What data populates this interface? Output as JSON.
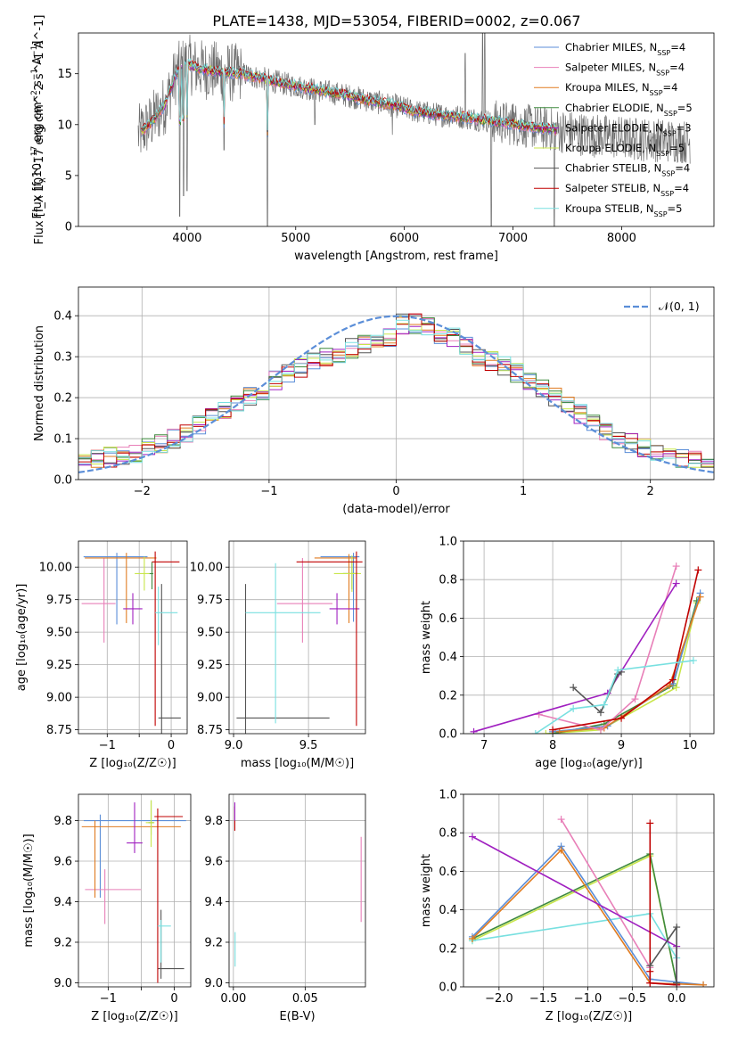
{
  "figure_title": "PLATE=1438, MJD=53054, FIBERID=0002, z=0.067",
  "colors": {
    "Chabrier MILES": "#5b8ed8",
    "Salpeter MILES": "#e87fb8",
    "Kroupa MILES": "#e07b20",
    "Chabrier ELODIE": "#3f8a3f",
    "Salpeter ELODIE": "#a020c0",
    "Kroupa ELODIE": "#c8e64a",
    "Chabrier STELIB": "#555555",
    "Salpeter STELIB": "#c00000",
    "Kroupa STELIB": "#78e0e0",
    "data": "#6e6e6e",
    "normal": "#5b8ed8"
  },
  "chart_data": [
    {
      "id": "spectrum",
      "type": "line",
      "title": "PLATE=1438, MJD=53054, FIBERID=0002, z=0.067",
      "xlabel": "wavelength [Angstrom, rest frame]",
      "ylabel": "Flux [f_λ 10^-17 erg cm^-2 s^-1 A^-1]",
      "xlim": [
        3000,
        8850
      ],
      "ylim": [
        0,
        19
      ],
      "xticks": [
        4000,
        5000,
        6000,
        7000,
        8000
      ],
      "yticks": [
        0,
        5,
        10,
        15
      ],
      "grid": false,
      "legend_position": "top-right",
      "legend": [
        {
          "label": "Chabrier MILES, N",
          "sub": "SSP",
          "tail": "=4"
        },
        {
          "label": "Salpeter MILES, N",
          "sub": "SSP",
          "tail": "=4"
        },
        {
          "label": "Kroupa MILES, N",
          "sub": "SSP",
          "tail": "=4"
        },
        {
          "label": "Chabrier ELODIE, N",
          "sub": "SSP",
          "tail": "=5"
        },
        {
          "label": "Salpeter ELODIE, N",
          "sub": "SSP",
          "tail": "=3"
        },
        {
          "label": "Kroupa ELODIE, N",
          "sub": "SSP",
          "tail": "=5"
        },
        {
          "label": "Chabrier STELIB, N",
          "sub": "SSP",
          "tail": "=4"
        },
        {
          "label": "Salpeter STELIB, N",
          "sub": "SSP",
          "tail": "=4"
        },
        {
          "label": "Kroupa STELIB, N",
          "sub": "SSP",
          "tail": "=5"
        }
      ],
      "data_trend": {
        "x": [
          3550,
          3650,
          3800,
          3900,
          4000,
          4100,
          4300,
          4500,
          4700,
          4900,
          5100,
          5300,
          5500,
          5700,
          5900,
          6100,
          6300,
          6500,
          6700,
          6900,
          7100,
          7300,
          7500,
          7700,
          7900,
          8100,
          8300,
          8500,
          8630
        ],
        "y": [
          9.0,
          10.0,
          12.0,
          15.0,
          16.0,
          15.5,
          15.2,
          15.0,
          14.5,
          14.0,
          13.6,
          13.2,
          12.8,
          12.3,
          11.9,
          11.3,
          11.0,
          10.8,
          10.5,
          10.2,
          9.9,
          9.6,
          9.3,
          9.0,
          8.8,
          8.6,
          8.5,
          8.4,
          8.3
        ]
      },
      "absorption_dips": [
        {
          "x": 3933,
          "y": 1.0
        },
        {
          "x": 3969,
          "y": 3.0
        },
        {
          "x": 4000,
          "y": 3.5
        },
        {
          "x": 4340,
          "y": 7.5
        },
        {
          "x": 4740,
          "y": 0.0
        },
        {
          "x": 5175,
          "y": 10.0
        },
        {
          "x": 5890,
          "y": 9.0
        },
        {
          "x": 6800,
          "y": 0.0
        },
        {
          "x": 7380,
          "y": 0.0
        }
      ],
      "emission_spikes": [
        {
          "x": 6560,
          "y": 17.0
        },
        {
          "x": 6720,
          "y": 19.0
        },
        {
          "x": 6740,
          "y": 19.0
        },
        {
          "x": 7000,
          "y": 12.0
        }
      ]
    },
    {
      "id": "residuals",
      "type": "histogram",
      "xlabel": "(data-model)/error",
      "ylabel": "Normed distribution",
      "xlim": [
        -2.5,
        2.5
      ],
      "ylim": [
        0,
        0.47
      ],
      "xticks": [
        -2,
        -1,
        0,
        1,
        2
      ],
      "yticks": [
        0.0,
        0.1,
        0.2,
        0.3,
        0.4
      ],
      "grid": true,
      "legend_position": "top-right",
      "normal_label": "𝒩(0, 1)",
      "bin_width": 0.1,
      "bin_start": -2.5,
      "base_profile": [
        0.045,
        0.05,
        0.055,
        0.06,
        0.065,
        0.08,
        0.09,
        0.1,
        0.115,
        0.13,
        0.15,
        0.165,
        0.185,
        0.2,
        0.22,
        0.24,
        0.26,
        0.27,
        0.29,
        0.3,
        0.31,
        0.32,
        0.33,
        0.34,
        0.35,
        0.38,
        0.38,
        0.37,
        0.35,
        0.345,
        0.33,
        0.3,
        0.29,
        0.28,
        0.26,
        0.245,
        0.22,
        0.2,
        0.18,
        0.16,
        0.14,
        0.12,
        0.1,
        0.09,
        0.08,
        0.07,
        0.06,
        0.05,
        0.045,
        0.04
      ]
    },
    {
      "id": "age_vs_Z",
      "type": "errorbar",
      "xlabel": "Z [log₁₀(Z/Z☉)]",
      "ylabel": "age  [log₁₀(age/yr)]",
      "xlim": [
        -1.45,
        0.25
      ],
      "ylim": [
        8.72,
        10.2
      ],
      "xticks": [
        -1,
        -0.5,
        0
      ],
      "xticklabels": [
        "−1",
        "",
        "0"
      ],
      "yticks": [
        8.75,
        9.0,
        9.25,
        9.5,
        9.75,
        10.0
      ],
      "grid": true,
      "points": [
        {
          "m": "Chabrier MILES",
          "x": -0.85,
          "xerr": [
            0.52,
            0.48
          ],
          "y": 10.08,
          "yerr": [
            0.52,
            0.03
          ]
        },
        {
          "m": "Salpeter MILES",
          "x": -1.05,
          "xerr": [
            0.35,
            0.18
          ],
          "y": 9.72,
          "yerr": [
            0.3,
            0.35
          ]
        },
        {
          "m": "Kroupa MILES",
          "x": -0.7,
          "xerr": [
            0.65,
            0.47
          ],
          "y": 10.07,
          "yerr": [
            0.5,
            0.04
          ]
        },
        {
          "m": "Chabrier ELODIE",
          "x": -0.3,
          "xerr": [
            0.04,
            0.02
          ],
          "y": 9.95,
          "yerr": [
            0.12,
            0.09
          ]
        },
        {
          "m": "Salpeter ELODIE",
          "x": -0.6,
          "xerr": [
            0.15,
            0.15
          ],
          "y": 9.68,
          "yerr": [
            0.12,
            0.12
          ]
        },
        {
          "m": "Kroupa ELODIE",
          "x": -0.42,
          "xerr": [
            0.15,
            0.08
          ],
          "y": 9.95,
          "yerr": [
            0.13,
            0.13
          ]
        },
        {
          "m": "Chabrier STELIB",
          "x": -0.15,
          "xerr": [
            0.05,
            0.3
          ],
          "y": 8.84,
          "yerr": [
            0.12,
            1.03
          ]
        },
        {
          "m": "Salpeter STELIB",
          "x": -0.25,
          "xerr": [
            0.05,
            0.38
          ],
          "y": 10.04,
          "yerr": [
            1.26,
            0.08
          ]
        },
        {
          "m": "Kroupa STELIB",
          "x": -0.2,
          "xerr": [
            0.05,
            0.3
          ],
          "y": 9.65,
          "yerr": [
            0.25,
            0.2
          ]
        }
      ]
    },
    {
      "id": "age_vs_mass",
      "type": "errorbar",
      "xlabel": "mass [log₁₀(M/M☉)]",
      "ylabel": "",
      "xlim": [
        8.97,
        9.88
      ],
      "ylim": [
        8.72,
        10.2
      ],
      "xticks": [
        9.0,
        9.5
      ],
      "xticklabels": [
        "9.0",
        "9.5"
      ],
      "yticks": [
        8.75,
        9.0,
        9.25,
        9.5,
        9.75,
        10.0
      ],
      "grid": true,
      "points": [
        {
          "m": "Chabrier MILES",
          "x": 9.8,
          "xerr": [
            0.22,
            0.04
          ],
          "y": 10.08,
          "yerr": [
            0.5,
            0.03
          ]
        },
        {
          "m": "Salpeter MILES",
          "x": 9.46,
          "xerr": [
            0.17,
            0.2
          ],
          "y": 9.72,
          "yerr": [
            0.3,
            0.35
          ]
        },
        {
          "m": "Kroupa MILES",
          "x": 9.77,
          "xerr": [
            0.23,
            0.05
          ],
          "y": 10.07,
          "yerr": [
            0.5,
            0.03
          ]
        },
        {
          "m": "Chabrier ELODIE",
          "x": 9.79,
          "xerr": [
            0.06,
            0.04
          ],
          "y": 9.95,
          "yerr": [
            0.12,
            0.09
          ]
        },
        {
          "m": "Salpeter ELODIE",
          "x": 9.69,
          "xerr": [
            0.05,
            0.15
          ],
          "y": 9.68,
          "yerr": [
            0.12,
            0.12
          ]
        },
        {
          "m": "Kroupa ELODIE",
          "x": 9.79,
          "xerr": [
            0.12,
            0.06
          ],
          "y": 9.95,
          "yerr": [
            0.14,
            0.14
          ]
        },
        {
          "m": "Chabrier STELIB",
          "x": 9.08,
          "xerr": [
            0.06,
            0.56
          ],
          "y": 8.84,
          "yerr": [
            0.12,
            1.03
          ]
        },
        {
          "m": "Salpeter STELIB",
          "x": 9.82,
          "xerr": [
            0.4,
            0.04
          ],
          "y": 10.04,
          "yerr": [
            1.26,
            0.08
          ]
        },
        {
          "m": "Kroupa STELIB",
          "x": 9.28,
          "xerr": [
            0.2,
            0.3
          ],
          "y": 9.65,
          "yerr": [
            0.85,
            0.38
          ]
        }
      ]
    },
    {
      "id": "weight_vs_age",
      "type": "line",
      "xlabel": "age  [log₁₀(age/yr)]",
      "ylabel": "mass weight",
      "xlim": [
        6.7,
        10.35
      ],
      "ylim": [
        0,
        1
      ],
      "xticks": [
        7,
        8,
        9,
        10
      ],
      "yticks": [
        0.0,
        0.2,
        0.4,
        0.6,
        0.8,
        1.0
      ],
      "grid": true,
      "series": [
        {
          "m": "Kroupa ELODIE",
          "x": [
            7.9,
            8.7,
            9.8,
            10.1
          ],
          "y": [
            0.0,
            0.02,
            0.24,
            0.68
          ]
        },
        {
          "m": "Chabrier ELODIE",
          "x": [
            8.0,
            8.75,
            9.75,
            10.1
          ],
          "y": [
            0.0,
            0.05,
            0.25,
            0.69
          ]
        },
        {
          "m": "Chabrier MILES",
          "x": [
            8.0,
            8.8,
            9.75,
            10.15
          ],
          "y": [
            0.01,
            0.04,
            0.26,
            0.73
          ]
        },
        {
          "m": "Kroupa MILES",
          "x": [
            8.1,
            8.75,
            9.7,
            10.15
          ],
          "y": [
            0.01,
            0.03,
            0.25,
            0.71
          ]
        },
        {
          "m": "Salpeter MILES",
          "x": [
            7.8,
            8.7,
            9.2,
            9.8
          ],
          "y": [
            0.1,
            0.02,
            0.18,
            0.87
          ]
        },
        {
          "m": "Salpeter ELODIE",
          "x": [
            6.85,
            8.8,
            9.8
          ],
          "y": [
            0.01,
            0.21,
            0.78
          ]
        },
        {
          "m": "Salpeter STELIB",
          "x": [
            8.0,
            9.0,
            9.75,
            10.12
          ],
          "y": [
            0.02,
            0.08,
            0.28,
            0.85
          ]
        },
        {
          "m": "Chabrier STELIB",
          "x": [
            8.3,
            8.7,
            8.95,
            9.0
          ],
          "y": [
            0.24,
            0.11,
            0.31,
            0.32
          ]
        },
        {
          "m": "Kroupa STELIB",
          "x": [
            7.75,
            8.3,
            8.75,
            8.95,
            10.05
          ],
          "y": [
            0.0,
            0.13,
            0.15,
            0.33,
            0.38
          ]
        }
      ]
    },
    {
      "id": "mass_vs_Z",
      "type": "errorbar",
      "xlabel": "Z [log₁₀(Z/Z☉)]",
      "ylabel": "mass [log₁₀(M/M☉)]",
      "xlim": [
        -1.45,
        0.25
      ],
      "ylim": [
        8.98,
        9.93
      ],
      "xticks": [
        -1,
        -0.5,
        0
      ],
      "xticklabels": [
        "−1",
        "",
        "0"
      ],
      "yticks": [
        9.0,
        9.2,
        9.4,
        9.6,
        9.8
      ],
      "grid": true,
      "points": [
        {
          "m": "Chabrier MILES",
          "x": -1.12,
          "xerr": [
            0.25,
            1.3
          ],
          "y": 9.8,
          "yerr": [
            0.38,
            0.03
          ]
        },
        {
          "m": "Salpeter MILES",
          "x": -1.05,
          "xerr": [
            0.3,
            0.55
          ],
          "y": 9.46,
          "yerr": [
            0.17,
            0.1
          ]
        },
        {
          "m": "Kroupa MILES",
          "x": -1.2,
          "xerr": [
            0.2,
            1.3
          ],
          "y": 9.77,
          "yerr": [
            0.35,
            0.03
          ]
        },
        {
          "m": "Chabrier ELODIE",
          "x": -0.35,
          "xerr": [
            0.04,
            0.04
          ],
          "y": 9.79,
          "yerr": [
            0.06,
            0.11
          ]
        },
        {
          "m": "Salpeter ELODIE",
          "x": -0.6,
          "xerr": [
            0.12,
            0.12
          ],
          "y": 9.69,
          "yerr": [
            0.05,
            0.2
          ]
        },
        {
          "m": "Kroupa ELODIE",
          "x": -0.35,
          "xerr": [
            0.08,
            0.05
          ],
          "y": 9.79,
          "yerr": [
            0.12,
            0.11
          ]
        },
        {
          "m": "Chabrier STELIB",
          "x": -0.2,
          "xerr": [
            0.05,
            0.35
          ],
          "y": 9.07,
          "yerr": [
            0.05,
            0.29
          ]
        },
        {
          "m": "Salpeter STELIB",
          "x": -0.25,
          "xerr": [
            0.05,
            0.38
          ],
          "y": 9.82,
          "yerr": [
            0.82,
            0.04
          ]
        },
        {
          "m": "Kroupa STELIB",
          "x": -0.2,
          "xerr": [
            0.05,
            0.15
          ],
          "y": 9.28,
          "yerr": [
            0.18,
            0.03
          ]
        }
      ]
    },
    {
      "id": "mass_vs_EBV",
      "type": "errorbar",
      "xlabel": "E(B-V)",
      "ylabel": "",
      "xlim": [
        -0.003,
        0.092
      ],
      "ylim": [
        8.98,
        9.93
      ],
      "xticks": [
        0.0,
        0.05
      ],
      "xticklabels": [
        "0.00",
        "0.05"
      ],
      "yticks": [
        9.0,
        9.2,
        9.4,
        9.6,
        9.8
      ],
      "grid": true,
      "points": [
        {
          "m": "Salpeter STELIB",
          "x": 0.001,
          "xerr": [
            0.0,
            0.0
          ],
          "y": 9.82,
          "yerr": [
            0.07,
            0.05
          ]
        },
        {
          "m": "Salpeter ELODIE",
          "x": 0.001,
          "xerr": [
            0.0,
            0.0
          ],
          "y": 9.84,
          "yerr": [
            0.04,
            0.05
          ]
        },
        {
          "m": "Kroupa STELIB",
          "x": 0.0012,
          "xerr": [
            0.0,
            0.0
          ],
          "y": 9.2,
          "yerr": [
            0.12,
            0.05
          ]
        },
        {
          "m": "Salpeter MILES",
          "x": 0.089,
          "xerr": [
            0.0,
            0.0
          ],
          "y": 9.5,
          "yerr": [
            0.2,
            0.22
          ]
        }
      ]
    },
    {
      "id": "weight_vs_Z",
      "type": "line",
      "xlabel": "Z [log₁₀(Z/Z☉)]",
      "ylabel": "mass weight",
      "xlim": [
        -2.4,
        0.42
      ],
      "ylim": [
        0,
        1
      ],
      "xticks": [
        -2.0,
        -1.5,
        -1.0,
        -0.5,
        0.0
      ],
      "yticks": [
        0.0,
        0.2,
        0.4,
        0.6,
        0.8,
        1.0
      ],
      "grid": true,
      "series": [
        {
          "m": "Kroupa ELODIE",
          "x": [
            -2.3,
            -0.3,
            0.0
          ],
          "y": [
            0.24,
            0.68,
            0.02
          ]
        },
        {
          "m": "Chabrier ELODIE",
          "x": [
            -2.3,
            -0.3,
            0.0
          ],
          "y": [
            0.25,
            0.69,
            0.02
          ]
        },
        {
          "m": "Kroupa STELIB",
          "x": [
            -2.3,
            -0.3,
            0.0
          ],
          "y": [
            0.24,
            0.38,
            0.15
          ]
        },
        {
          "m": "Chabrier MILES",
          "x": [
            -2.3,
            -1.3,
            -0.3,
            0.3
          ],
          "y": [
            0.26,
            0.73,
            0.04,
            0.01
          ]
        },
        {
          "m": "Kroupa MILES",
          "x": [
            -2.3,
            -1.3,
            -0.3,
            0.3
          ],
          "y": [
            0.25,
            0.71,
            0.02,
            0.01
          ]
        },
        {
          "m": "Salpeter MILES",
          "x": [
            -1.3,
            -0.3,
            -0.3,
            0.0
          ],
          "y": [
            0.87,
            0.1,
            0.02,
            0.01
          ]
        },
        {
          "m": "Salpeter ELODIE",
          "x": [
            -2.3,
            0.0,
            0.0
          ],
          "y": [
            0.78,
            0.21,
            0.01
          ]
        },
        {
          "m": "Salpeter STELIB",
          "x": [
            -0.3,
            -0.3,
            -0.3,
            0.0
          ],
          "y": [
            0.85,
            0.08,
            0.02,
            0.01
          ]
        },
        {
          "m": "Chabrier STELIB",
          "x": [
            -0.3,
            0.0,
            0.0
          ],
          "y": [
            0.11,
            0.31,
            0.02
          ]
        }
      ]
    }
  ]
}
